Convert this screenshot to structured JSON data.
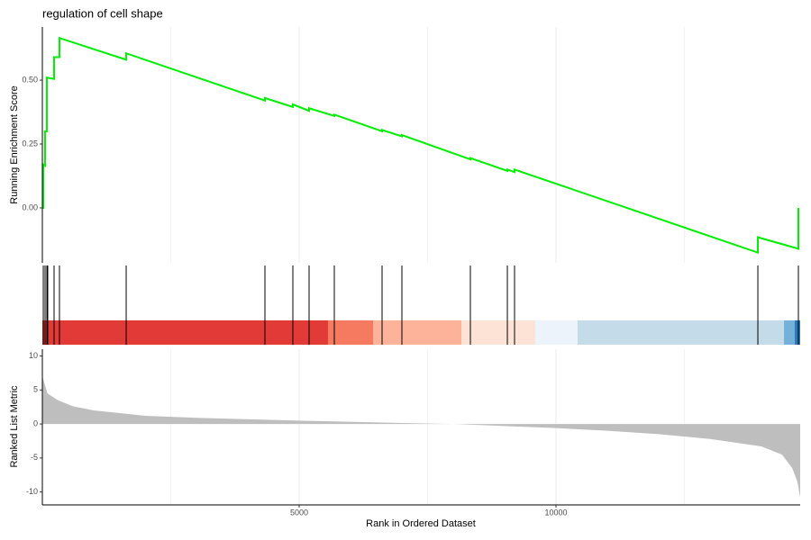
{
  "chart_data": [
    {
      "type": "line",
      "title": "regulation of cell shape",
      "ylabel": "Running Enrichment Score",
      "x": [
        0,
        18,
        18,
        53,
        53,
        88,
        88,
        228,
        228,
        333,
        333,
        1632,
        1632,
        4333,
        4333,
        4877,
        4877,
        5193,
        5193,
        5684,
        5684,
        6614,
        6614,
        7000,
        7000,
        8333,
        8333,
        9053,
        9053,
        9193,
        9193,
        13930,
        13930,
        14719,
        14719
      ],
      "series": [
        {
          "color": "#00ee00",
          "values": [
            0,
            0,
            0.17,
            0.165,
            0.3,
            0.3,
            0.51,
            0.505,
            0.59,
            0.59,
            0.665,
            0.58,
            0.605,
            0.42,
            0.43,
            0.395,
            0.405,
            0.38,
            0.39,
            0.36,
            0.365,
            0.3,
            0.305,
            0.28,
            0.285,
            0.19,
            0.195,
            0.145,
            0.15,
            0.14,
            0.15,
            -0.175,
            -0.115,
            -0.16,
            0.0
          ]
        }
      ],
      "xlim": [
        0,
        14754
      ],
      "ylim": [
        -0.215,
        0.708
      ],
      "yticks": [
        {
          "value": 0,
          "label": "0.00"
        },
        {
          "value": 0.25,
          "label": "0.25"
        },
        {
          "value": 0.5,
          "label": "0.50"
        }
      ],
      "xticks": [
        5000,
        10000
      ],
      "x_minor_grid": [
        2500,
        7500,
        12500
      ]
    },
    {
      "type": "rug",
      "xlim": [
        0,
        14754
      ],
      "hits": [
        18,
        53,
        88,
        105,
        228,
        333,
        1632,
        4333,
        4877,
        5193,
        5684,
        6614,
        7000,
        8333,
        9053,
        9193,
        13930,
        14719
      ],
      "bins": [
        0,
        5561,
        6439,
        8158,
        9596,
        10421,
        14439,
        14649,
        14754
      ],
      "colors": [
        "#e23b37",
        "#f57a5f",
        "#fcb39a",
        "#fde2d6",
        "#edf3fb",
        "#c4dbe9",
        "#75b0d9",
        "#2b79b8"
      ]
    },
    {
      "type": "area",
      "ylabel": "Ranked List Metric",
      "xlabel": "Rank in Ordered Dataset",
      "color": "#bebebe",
      "x": [
        0,
        100,
        300,
        600,
        1000,
        2000,
        3000,
        5000,
        7000,
        8000,
        9000,
        10000,
        11000,
        12000,
        13000,
        14000,
        14400,
        14600,
        14700,
        14754
      ],
      "values": [
        7,
        4.5,
        3.5,
        2.6,
        2.0,
        1.2,
        0.9,
        0.5,
        0.15,
        0.0,
        -0.3,
        -0.6,
        -1.0,
        -1.5,
        -2.2,
        -3.3,
        -4.5,
        -6.5,
        -8.5,
        -10.8
      ],
      "xlim": [
        0,
        14754
      ],
      "ylim": [
        -11.9,
        11.0
      ],
      "yticks": [
        10,
        5,
        0,
        -5,
        -10
      ],
      "xticks": [
        5000,
        10000
      ],
      "x_minor_grid": [
        2500,
        7500,
        12500
      ]
    }
  ]
}
